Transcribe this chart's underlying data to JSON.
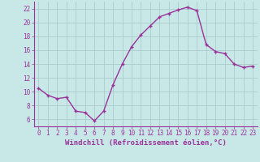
{
  "x": [
    0,
    1,
    2,
    3,
    4,
    5,
    6,
    7,
    8,
    9,
    10,
    11,
    12,
    13,
    14,
    15,
    16,
    17,
    18,
    19,
    20,
    21,
    22,
    23
  ],
  "y": [
    10.5,
    9.5,
    9.0,
    9.2,
    7.2,
    7.0,
    5.8,
    7.2,
    11.0,
    14.0,
    16.5,
    18.2,
    19.5,
    20.8,
    21.3,
    21.8,
    22.2,
    21.7,
    16.8,
    15.8,
    15.5,
    14.0,
    13.5,
    13.7
  ],
  "line_color": "#993399",
  "marker": "+",
  "bg_color": "#c8e8e8",
  "grid_color": "#aacccc",
  "axis_color": "#993399",
  "xlabel": "Windchill (Refroidissement éolien,°C)",
  "ylim": [
    5,
    23
  ],
  "xlim": [
    -0.5,
    23.5
  ],
  "yticks": [
    6,
    8,
    10,
    12,
    14,
    16,
    18,
    20,
    22
  ],
  "xticks": [
    0,
    1,
    2,
    3,
    4,
    5,
    6,
    7,
    8,
    9,
    10,
    11,
    12,
    13,
    14,
    15,
    16,
    17,
    18,
    19,
    20,
    21,
    22,
    23
  ],
  "tick_fontsize": 5.5,
  "label_fontsize": 6.5,
  "marker_size": 3,
  "linewidth": 1.0
}
